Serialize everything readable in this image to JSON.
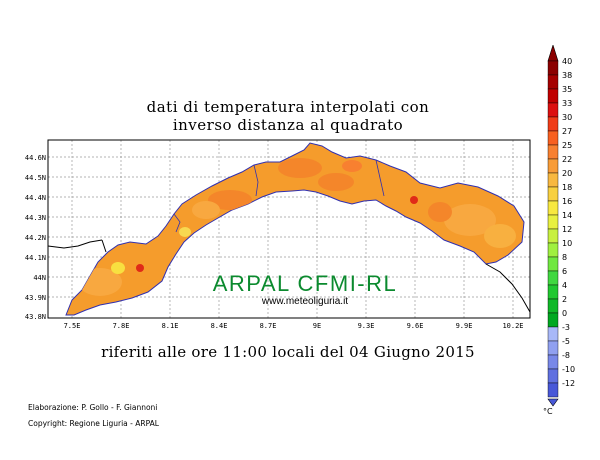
{
  "title": {
    "line1": "dati di temperatura interpolati con",
    "line2": "inverso distanza al quadrato"
  },
  "map": {
    "watermark": "ARPAL CFMI-RL",
    "website": "www.meteoliguria.it",
    "lat_labels": [
      "44.6N",
      "44.5N",
      "44.4N",
      "44.3N",
      "44.2N",
      "44.1N",
      "44N",
      "43.9N",
      "43.8N"
    ],
    "lon_labels": [
      "7.5E",
      "7.8E",
      "8.1E",
      "8.4E",
      "8.7E",
      "9E",
      "9.3E",
      "9.6E",
      "9.9E",
      "10.2E"
    ]
  },
  "caption": "riferiti alle ore 11:00 locali del 04 Giugno 2015",
  "credits": {
    "line1": "Elaborazione: P. Gollo - F. Giannoni",
    "line2": "Copyright: Regione Liguria - ARPAL"
  },
  "legend": {
    "unit": "°C",
    "levels": [
      {
        "label": "40",
        "color": "#8b0000"
      },
      {
        "label": "38",
        "color": "#a50000"
      },
      {
        "label": "35",
        "color": "#c00000"
      },
      {
        "label": "33",
        "color": "#dc1010"
      },
      {
        "label": "30",
        "color": "#f03c18"
      },
      {
        "label": "27",
        "color": "#f86020"
      },
      {
        "label": "25",
        "color": "#f88030"
      },
      {
        "label": "22",
        "color": "#f89c38"
      },
      {
        "label": "20",
        "color": "#f8b840"
      },
      {
        "label": "18",
        "color": "#f8d040"
      },
      {
        "label": "16",
        "color": "#f8e840"
      },
      {
        "label": "14",
        "color": "#e8f040"
      },
      {
        "label": "12",
        "color": "#c8f040"
      },
      {
        "label": "10",
        "color": "#a0f040"
      },
      {
        "label": "8",
        "color": "#70e840"
      },
      {
        "label": "6",
        "color": "#40d840"
      },
      {
        "label": "4",
        "color": "#20c830"
      },
      {
        "label": "2",
        "color": "#10b828"
      },
      {
        "label": "0",
        "color": "#00a820"
      },
      {
        "label": "-3",
        "color": "#a8b8f8"
      },
      {
        "label": "-5",
        "color": "#90a0f0"
      },
      {
        "label": "-8",
        "color": "#7888e8"
      },
      {
        "label": "-10",
        "color": "#6070e0"
      },
      {
        "label": "-12",
        "color": "#4858d8"
      }
    ]
  }
}
